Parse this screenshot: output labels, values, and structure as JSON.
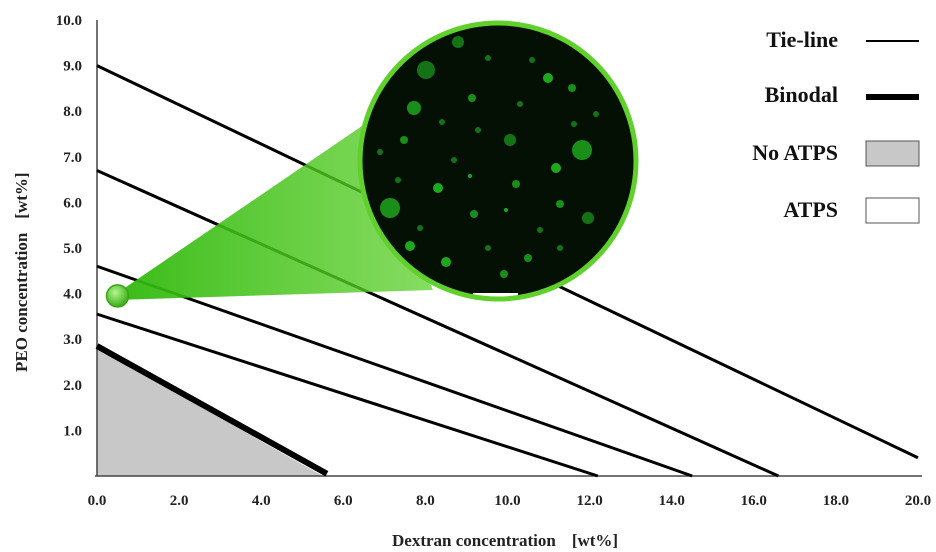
{
  "chart_data": {
    "type": "line",
    "xlabel": "Dextran concentration",
    "xlabel_unit": "[wt%]",
    "ylabel": "PEO concentration",
    "ylabel_unit": "[wt%]",
    "xlim": [
      0,
      20
    ],
    "ylim": [
      0,
      10
    ],
    "x_ticks": [
      "0.0",
      "2.0",
      "4.0",
      "6.0",
      "8.0",
      "10.0",
      "12.0",
      "14.0",
      "16.0",
      "18.0",
      "20.0"
    ],
    "y_ticks": [
      "1.0",
      "2.0",
      "3.0",
      "4.0",
      "5.0",
      "6.0",
      "7.0",
      "8.0",
      "9.0",
      "10.0"
    ],
    "grid": false,
    "legend_position": "top-right",
    "legend": [
      {
        "label": "Tie-line",
        "kind": "thin-line"
      },
      {
        "label": "Binodal",
        "kind": "thick-line"
      },
      {
        "label": "No ATPS",
        "kind": "gray-box"
      },
      {
        "label": "ATPS",
        "kind": "white-box"
      }
    ],
    "tie_lines": [
      {
        "x": [
          0,
          20.0
        ],
        "y": [
          9.0,
          0.4
        ]
      },
      {
        "x": [
          0,
          16.6
        ],
        "y": [
          6.7,
          0.0
        ]
      },
      {
        "x": [
          0,
          14.5
        ],
        "y": [
          4.6,
          0.0
        ]
      },
      {
        "x": [
          0,
          12.2
        ],
        "y": [
          3.55,
          0.0
        ]
      }
    ],
    "binodal": {
      "x": [
        0,
        5.6
      ],
      "y": [
        2.85,
        0.05
      ]
    },
    "no_atps_region": {
      "x": [
        0,
        0,
        5.5
      ],
      "y": [
        0,
        2.8,
        0
      ]
    },
    "highlight_point": {
      "x": 0.5,
      "y": 3.95
    },
    "inset": {
      "description_label": "fluorescence micrograph",
      "border_color": "#5fd02c",
      "bg_color": "#041004",
      "droplet_color": "#22c422"
    },
    "colors": {
      "tie_line": "#000000",
      "binodal": "#000000",
      "no_atps_fill": "#c8c8c8",
      "accent_green": "#5fd02c"
    }
  }
}
